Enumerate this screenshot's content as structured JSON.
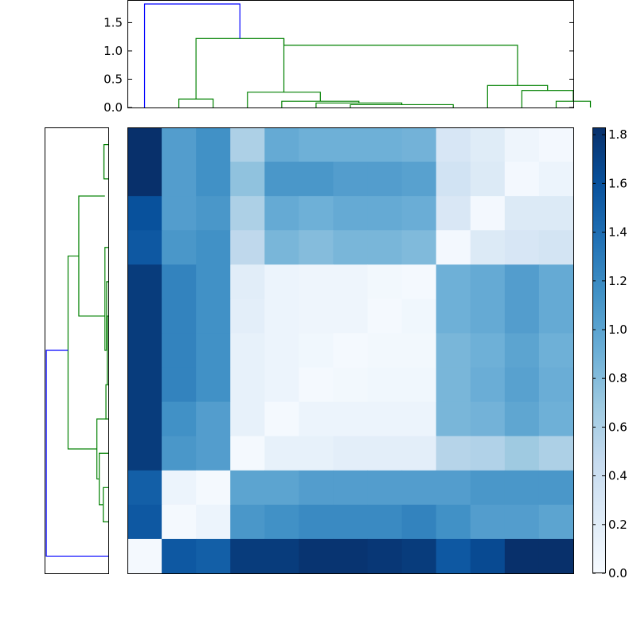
{
  "chart_data": [
    {
      "type": "dendrogram",
      "orientation": "top",
      "ylim": [
        0,
        1.9
      ],
      "yticks": [
        0.0,
        0.5,
        1.0,
        1.5
      ],
      "ytick_labels": [
        "0.0",
        "0.5",
        "1.0",
        "1.5"
      ],
      "colors": {
        "above_threshold": "#0000ff",
        "cluster": "#008000"
      },
      "links": [
        {
          "x": [
            6,
            6,
            9,
            9
          ],
          "y": [
            0.0,
            0.05,
            0.05,
            0.0
          ],
          "color": "#008000"
        },
        {
          "x": [
            5,
            5,
            7.5,
            7.5
          ],
          "y": [
            0.0,
            0.08,
            0.08,
            0.05
          ],
          "color": "#008000"
        },
        {
          "x": [
            4,
            4,
            6.25,
            6.25
          ],
          "y": [
            0.0,
            0.11,
            0.11,
            0.08
          ],
          "color": "#008000"
        },
        {
          "x": [
            3,
            3,
            5.125,
            5.125
          ],
          "y": [
            0.0,
            0.27,
            0.27,
            0.11
          ],
          "color": "#008000"
        },
        {
          "x": [
            1,
            1,
            2,
            2
          ],
          "y": [
            0.0,
            0.15,
            0.15,
            0.0
          ],
          "color": "#008000"
        },
        {
          "x": [
            1.5,
            1.5,
            4.0625,
            4.0625
          ],
          "y": [
            0.15,
            1.22,
            1.22,
            0.27
          ],
          "color": "#008000"
        },
        {
          "x": [
            12,
            12,
            13,
            13
          ],
          "y": [
            0.0,
            0.11,
            0.11,
            0.0
          ],
          "color": "#008000"
        },
        {
          "x": [
            11,
            11,
            12.5,
            12.5
          ],
          "y": [
            0.0,
            0.3,
            0.3,
            0.11
          ],
          "color": "#008000"
        },
        {
          "x": [
            10,
            10,
            11.75,
            11.75
          ],
          "y": [
            0.0,
            0.39,
            0.39,
            0.3
          ],
          "color": "#008000"
        },
        {
          "x": [
            10.875,
            10.875,
            4.0625,
            4.0625
          ],
          "y": [
            0.39,
            1.1,
            1.1,
            1.22
          ],
          "color": "#008000"
        },
        {
          "x": [
            0,
            0,
            2.78,
            2.78
          ],
          "y": [
            0.0,
            1.83,
            1.83,
            1.22
          ],
          "color": "#0000ff"
        }
      ]
    },
    {
      "type": "dendrogram",
      "orientation": "left",
      "colors": {
        "above_threshold": "#0000ff",
        "cluster": "#008000"
      },
      "links": [
        {
          "y": [
            0,
            0,
            1,
            1
          ],
          "x": [
            0.0,
            0.13,
            0.13,
            0.0
          ],
          "color": "#008000"
        },
        {
          "y": [
            0,
            0,
            1,
            1
          ],
          "x": [
            0.0,
            0.13,
            0.13,
            0.0
          ],
          "color": "#008000"
        },
        {
          "y": [
            5,
            5,
            7,
            7
          ],
          "x": [
            0.0,
            0.03,
            0.03,
            0.0
          ],
          "color": "#008000"
        },
        {
          "y": [
            4,
            4,
            6,
            6
          ],
          "x": [
            0.0,
            0.05,
            0.05,
            0.03
          ],
          "color": "#008000"
        },
        {
          "y": [
            7,
            7,
            8,
            8
          ],
          "x": [
            0.0,
            0.07,
            0.07,
            0.05
          ],
          "color": "#008000"
        },
        {
          "y": [
            3,
            3,
            6,
            6
          ],
          "x": [
            0.0,
            0.1,
            0.1,
            0.07
          ],
          "color": "#008000"
        },
        {
          "y": [
            1.5,
            1.5,
            5,
            5
          ],
          "x": [
            0.1,
            0.88,
            0.88,
            0.1
          ],
          "color": "#008000"
        },
        {
          "y": [
            10,
            10,
            11,
            11
          ],
          "x": [
            0.0,
            0.15,
            0.15,
            0.0
          ],
          "color": "#008000"
        },
        {
          "y": [
            9,
            9,
            10.5,
            10.5
          ],
          "x": [
            0.0,
            0.27,
            0.27,
            0.15
          ],
          "color": "#008000"
        },
        {
          "y": [
            8,
            8,
            9.75,
            9.75
          ],
          "x": [
            0.0,
            0.34,
            0.34,
            0.27
          ],
          "color": "#008000"
        },
        {
          "y": [
            3.25,
            3.25,
            8.875,
            8.875
          ],
          "x": [
            0.88,
            1.2,
            1.2,
            0.34
          ],
          "color": "#008000"
        },
        {
          "y": [
            12,
            12,
            6.0,
            6.0
          ],
          "x": [
            0.0,
            1.85,
            1.85,
            1.2
          ],
          "color": "#0000ff"
        }
      ],
      "xlim": [
        0,
        1.9
      ]
    },
    {
      "type": "heatmap",
      "rows": 13,
      "cols": 13,
      "colormap": "Blues",
      "vmin": 0.0,
      "vmax": 1.83,
      "colorbar": {
        "ticks": [
          0.0,
          0.2,
          0.4,
          0.6,
          0.8,
          1.0,
          1.2,
          1.4,
          1.6,
          1.8
        ],
        "tick_labels": [
          "0.0",
          "0.2",
          "0.4",
          "0.6",
          "0.8",
          "1.0",
          "1.2",
          "1.4",
          "1.6",
          "1.8"
        ]
      },
      "values": [
        [
          1.83,
          1.05,
          1.15,
          0.6,
          0.95,
          0.9,
          0.9,
          0.9,
          0.88,
          0.3,
          0.22,
          0.08,
          0.04
        ],
        [
          1.83,
          1.05,
          1.15,
          0.75,
          1.1,
          1.1,
          1.05,
          1.05,
          1.02,
          0.35,
          0.25,
          0.04,
          0.1
        ],
        [
          1.6,
          1.05,
          1.1,
          0.6,
          0.95,
          0.9,
          0.95,
          0.95,
          0.92,
          0.28,
          0.04,
          0.25,
          0.25
        ],
        [
          1.55,
          1.1,
          1.15,
          0.5,
          0.85,
          0.8,
          0.85,
          0.85,
          0.82,
          0.04,
          0.25,
          0.3,
          0.33
        ],
        [
          1.75,
          1.25,
          1.15,
          0.2,
          0.1,
          0.08,
          0.08,
          0.05,
          0.03,
          0.9,
          0.95,
          1.05,
          0.95
        ],
        [
          1.75,
          1.25,
          1.15,
          0.18,
          0.1,
          0.08,
          0.08,
          0.03,
          0.06,
          0.9,
          0.95,
          1.05,
          0.95
        ],
        [
          1.75,
          1.25,
          1.15,
          0.15,
          0.1,
          0.06,
          0.03,
          0.05,
          0.05,
          0.85,
          0.9,
          1.0,
          0.9
        ],
        [
          1.75,
          1.25,
          1.15,
          0.15,
          0.1,
          0.03,
          0.05,
          0.06,
          0.06,
          0.85,
          0.92,
          1.02,
          0.92
        ],
        [
          1.75,
          1.15,
          1.05,
          0.15,
          0.03,
          0.1,
          0.1,
          0.1,
          0.1,
          0.85,
          0.88,
          0.98,
          0.9
        ],
        [
          1.75,
          1.1,
          1.05,
          0.03,
          0.15,
          0.15,
          0.18,
          0.18,
          0.18,
          0.55,
          0.58,
          0.68,
          0.6
        ],
        [
          1.5,
          0.1,
          0.03,
          1.0,
          1.0,
          1.05,
          1.05,
          1.05,
          1.05,
          1.05,
          1.1,
          1.1,
          1.1
        ],
        [
          1.55,
          0.03,
          0.1,
          1.1,
          1.15,
          1.2,
          1.2,
          1.2,
          1.25,
          1.15,
          1.05,
          1.05,
          1.0
        ],
        [
          0.03,
          1.55,
          1.5,
          1.75,
          1.75,
          1.8,
          1.8,
          1.78,
          1.75,
          1.55,
          1.65,
          1.85,
          1.85
        ]
      ]
    }
  ]
}
